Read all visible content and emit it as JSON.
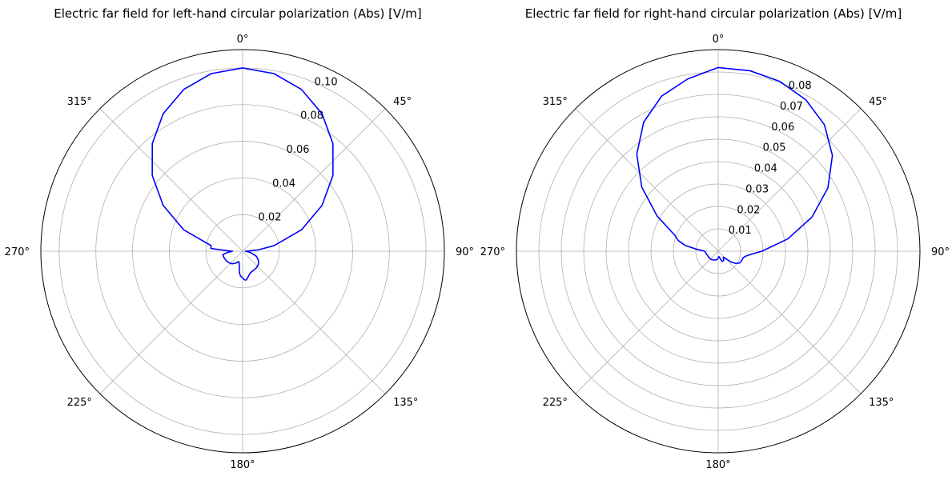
{
  "chart_data": [
    {
      "type": "line",
      "polar": true,
      "title": "Electric far field for left-hand circular polarization (Abs) [V/m]",
      "theta_zero_location": "N",
      "theta_direction": "clockwise",
      "theta_ticks": [
        "0°",
        "45°",
        "90°",
        "135°",
        "180°",
        "225°",
        "270°",
        "315°"
      ],
      "r_ticks": [
        0.02,
        0.04,
        0.06,
        0.08,
        0.1
      ],
      "r_tick_labels": [
        "0.02",
        "0.04",
        "0.06",
        "0.08",
        "0.10"
      ],
      "r_lim": [
        0,
        0.11
      ],
      "grid": true,
      "series": [
        {
          "color": "#0000ff",
          "theta_deg": [
            0,
            10,
            20,
            30,
            40,
            50,
            60,
            70,
            80,
            85,
            88,
            90,
            95,
            100,
            110,
            120,
            130,
            140,
            150,
            160,
            165,
            170,
            173,
            175,
            177,
            180,
            182,
            185,
            188,
            190,
            195,
            200,
            210,
            220,
            230,
            240,
            250,
            260,
            265,
            270,
            272,
            275,
            280,
            290,
            300,
            310,
            320,
            330,
            340,
            350,
            360
          ],
          "r": [
            0.1,
            0.0984,
            0.0939,
            0.0866,
            0.0766,
            0.0643,
            0.05,
            0.0342,
            0.0174,
            0.0087,
            0.0035,
            0.0015,
            0.0025,
            0.0045,
            0.008,
            0.01,
            0.0112,
            0.0118,
            0.012,
            0.0125,
            0.0135,
            0.015,
            0.0158,
            0.0158,
            0.0155,
            0.0145,
            0.0142,
            0.0135,
            0.012,
            0.0105,
            0.0072,
            0.006,
            0.0075,
            0.009,
            0.0098,
            0.0103,
            0.0107,
            0.011,
            0.0085,
            0.0055,
            0.0085,
            0.0174,
            0.0174,
            0.0342,
            0.05,
            0.0643,
            0.0766,
            0.0866,
            0.0939,
            0.0984,
            0.1
          ]
        }
      ]
    },
    {
      "type": "line",
      "polar": true,
      "title": "Electric far field for right-hand circular polarization (Abs) [V/m]",
      "theta_zero_location": "N",
      "theta_direction": "clockwise",
      "theta_ticks": [
        "0°",
        "45°",
        "90°",
        "135°",
        "180°",
        "225°",
        "270°",
        "315°"
      ],
      "r_ticks": [
        0.01,
        0.02,
        0.03,
        0.04,
        0.05,
        0.06,
        0.07,
        0.08
      ],
      "r_tick_labels": [
        "0.01",
        "0.02",
        "0.03",
        "0.04",
        "0.05",
        "0.06",
        "0.07",
        "0.08"
      ],
      "r_lim": [
        0,
        0.09
      ],
      "grid": true,
      "series": [
        {
          "color": "#0000ff",
          "theta_deg": [
            0,
            10,
            20,
            30,
            40,
            50,
            60,
            70,
            80,
            90,
            95,
            100,
            105,
            110,
            115,
            120,
            125,
            130,
            135,
            140,
            145,
            150,
            155,
            160,
            165,
            170,
            175,
            180,
            185,
            190,
            200,
            210,
            220,
            230,
            240,
            250,
            260,
            270,
            275,
            280,
            285,
            290,
            300,
            310,
            320,
            330,
            340,
            350,
            360
          ],
          "r": [
            0.082,
            0.0818,
            0.0806,
            0.0781,
            0.0737,
            0.0665,
            0.0565,
            0.0445,
            0.0315,
            0.0195,
            0.015,
            0.0125,
            0.0115,
            0.0113,
            0.0112,
            0.0107,
            0.0095,
            0.0075,
            0.0045,
            0.0035,
            0.0042,
            0.0048,
            0.005,
            0.0045,
            0.0035,
            0.0025,
            0.0025,
            0.003,
            0.0035,
            0.0038,
            0.0042,
            0.0045,
            0.0048,
            0.005,
            0.005,
            0.0052,
            0.0055,
            0.006,
            0.0095,
            0.015,
            0.0185,
            0.0205,
            0.0315,
            0.0445,
            0.0565,
            0.0665,
            0.0737,
            0.0781,
            0.082
          ]
        }
      ]
    }
  ]
}
